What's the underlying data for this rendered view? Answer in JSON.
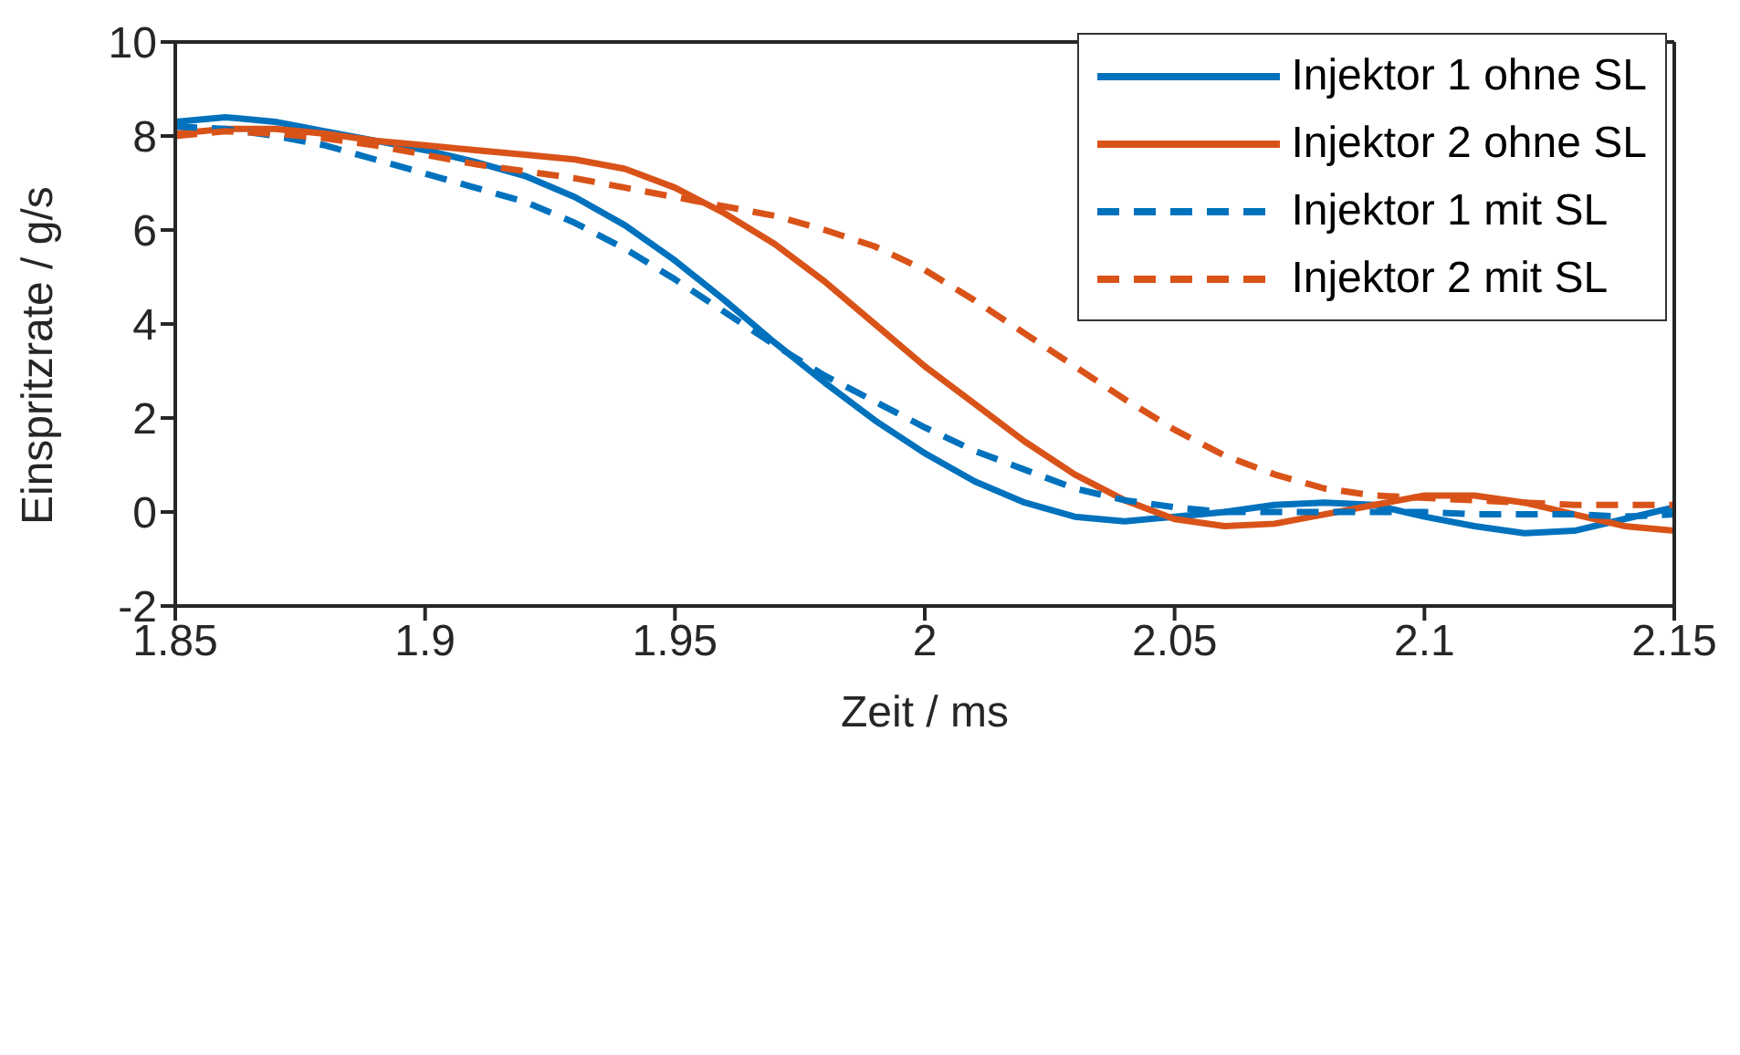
{
  "chart_data": {
    "type": "line",
    "xlabel": "Zeit / ms",
    "ylabel": "Einspritzrate / g/s",
    "x": [
      1.85,
      1.86,
      1.87,
      1.88,
      1.89,
      1.9,
      1.91,
      1.92,
      1.93,
      1.94,
      1.95,
      1.96,
      1.97,
      1.98,
      1.99,
      2.0,
      2.01,
      2.02,
      2.03,
      2.04,
      2.05,
      2.06,
      2.07,
      2.08,
      2.09,
      2.1,
      2.11,
      2.12,
      2.13,
      2.14,
      2.15
    ],
    "series": [
      {
        "name": "Injektor 1 ohne SL",
        "color": "#0072bd",
        "line_style": "solid",
        "values": [
          8.3,
          8.4,
          8.3,
          8.1,
          7.9,
          7.7,
          7.45,
          7.15,
          6.7,
          6.1,
          5.35,
          4.5,
          3.6,
          2.75,
          1.95,
          1.25,
          0.65,
          0.2,
          -0.1,
          -0.2,
          -0.1,
          0.0,
          0.15,
          0.2,
          0.15,
          -0.1,
          -0.3,
          -0.45,
          -0.4,
          -0.15,
          0.1
        ]
      },
      {
        "name": "Injektor 2 ohne SL",
        "color": "#d95319",
        "line_style": "solid",
        "values": [
          8.05,
          8.15,
          8.15,
          8.05,
          7.9,
          7.8,
          7.7,
          7.6,
          7.5,
          7.3,
          6.9,
          6.35,
          5.7,
          4.9,
          4.0,
          3.1,
          2.3,
          1.5,
          0.8,
          0.25,
          -0.15,
          -0.3,
          -0.25,
          -0.05,
          0.15,
          0.35,
          0.35,
          0.2,
          -0.05,
          -0.3,
          -0.4
        ]
      },
      {
        "name": "Injektor 1 mit SL",
        "color": "#0072bd",
        "line_style": "dashed",
        "values": [
          8.2,
          8.15,
          8.0,
          7.8,
          7.5,
          7.2,
          6.9,
          6.6,
          6.15,
          5.6,
          4.95,
          4.25,
          3.55,
          2.9,
          2.35,
          1.8,
          1.3,
          0.9,
          0.5,
          0.25,
          0.1,
          0.0,
          0.0,
          0.0,
          0.0,
          0.0,
          -0.05,
          -0.05,
          -0.05,
          -0.1,
          -0.05
        ]
      },
      {
        "name": "Injektor 2 mit SL",
        "color": "#d95319",
        "line_style": "dashed",
        "values": [
          8.0,
          8.1,
          8.05,
          7.95,
          7.8,
          7.6,
          7.4,
          7.25,
          7.1,
          6.9,
          6.7,
          6.5,
          6.3,
          6.0,
          5.65,
          5.15,
          4.5,
          3.8,
          3.1,
          2.4,
          1.75,
          1.2,
          0.8,
          0.5,
          0.35,
          0.3,
          0.25,
          0.2,
          0.15,
          0.15,
          0.15
        ]
      }
    ],
    "xlim": [
      1.85,
      2.15
    ],
    "xticks": [
      1.85,
      1.9,
      1.95,
      2,
      2.05,
      2.1,
      2.15
    ],
    "ylim": [
      -2,
      10
    ],
    "yticks": [
      -2,
      0,
      2,
      4,
      6,
      8,
      10
    ],
    "grid": false,
    "legend": "top right",
    "marker": "none"
  }
}
